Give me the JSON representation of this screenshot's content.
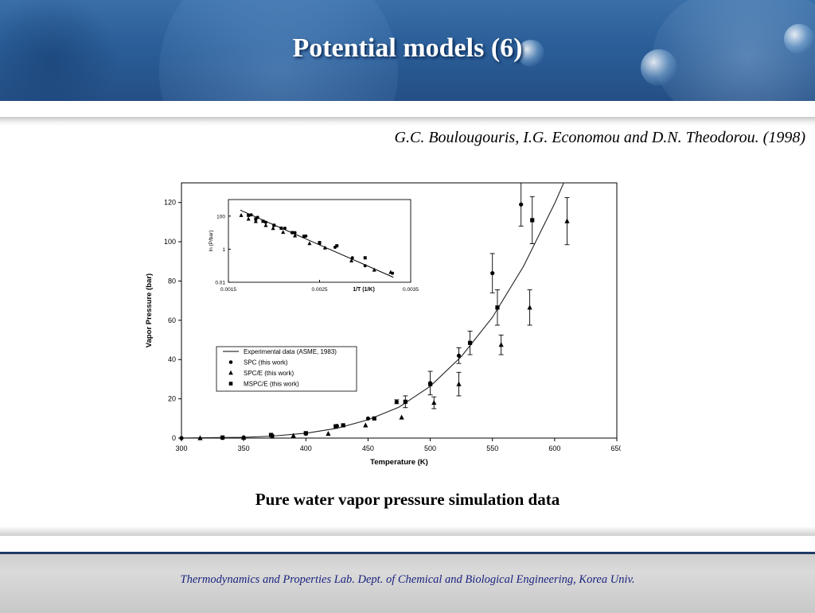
{
  "slide": {
    "title": "Potential models (6)",
    "citation": "G.C. Boulougouris, I.G. Economou and D.N. Theodorou. (1998)",
    "caption": "Pure water vapor pressure simulation data",
    "footer": "Thermodynamics  and  Properties  Lab.   Dept. of Chemical and Biological Engineering, Korea Univ."
  },
  "colors": {
    "header": "#2b5e98",
    "title": "#ffffff",
    "footer_text": "#1a237e",
    "footer_rule": "#1f3b66"
  },
  "chart_data": [
    {
      "type": "scatter",
      "xlabel": "Temperature (K)",
      "ylabel": "Vapor Pressure (bar)",
      "xlim": [
        300,
        650
      ],
      "ylim": [
        0,
        130
      ],
      "xticks": [
        "300",
        "350",
        "400",
        "450",
        "500",
        "550",
        "600",
        "650"
      ],
      "yticks": [
        "0",
        "20",
        "40",
        "60",
        "80",
        "100",
        "120"
      ],
      "legend_position": "lower-left",
      "legend": [
        "Experimental data (ASME, 1983)",
        "SPC (this work)",
        "SPC/E (this work)",
        "MSPC/E (this work)"
      ],
      "series": [
        {
          "name": "Experimental data (ASME, 1983)",
          "marker": "line",
          "x": [
            300,
            350,
            373,
            400,
            425,
            450,
            475,
            500,
            525,
            550,
            575,
            600,
            608
          ],
          "y": [
            0.035,
            0.42,
            1.01,
            2.46,
            5.0,
            9.3,
            15.8,
            26.4,
            41.5,
            61.5,
            87.5,
            119.5,
            131
          ]
        },
        {
          "name": "SPC (this work)",
          "marker": "circle",
          "x": [
            300,
            333,
            350,
            373,
            400,
            425,
            450,
            473,
            500,
            523,
            550,
            573
          ],
          "y": [
            0,
            0.1,
            0.3,
            1.3,
            2.2,
            6.2,
            10,
            18.5,
            28,
            42,
            84,
            119
          ],
          "err": [
            0,
            0,
            0,
            0,
            0,
            0,
            0,
            1,
            6,
            4,
            10,
            11
          ]
        },
        {
          "name": "SPC/E (this work)",
          "marker": "triangle",
          "x": [
            315,
            350,
            373,
            390,
            418,
            448,
            477,
            503,
            523,
            557,
            580,
            610
          ],
          "y": [
            0,
            0.2,
            0.8,
            1.2,
            2.2,
            6.5,
            10.5,
            18,
            27.5,
            47.5,
            66.5,
            110.5
          ],
          "err": [
            0,
            0,
            0,
            0,
            0,
            0,
            0,
            3,
            6,
            5,
            9,
            12
          ]
        },
        {
          "name": "MSPC/E (this work)",
          "marker": "square",
          "x": [
            333,
            372,
            400,
            424,
            430,
            455,
            480,
            500,
            532,
            554,
            582
          ],
          "y": [
            0.3,
            1.6,
            2.5,
            6,
            6.5,
            10,
            18.5,
            27.5,
            48.5,
            66.5,
            111
          ],
          "err": [
            0,
            0,
            0,
            0,
            0,
            0,
            3,
            0,
            6,
            9,
            12
          ]
        }
      ]
    },
    {
      "type": "scatter",
      "xlabel": "1/T (1/K)",
      "ylabel": "ln (P/bar)",
      "xlim": [
        0.0015,
        0.0035
      ],
      "ylim": [
        0.01,
        1000
      ],
      "yscale": "log",
      "xticks": [
        "0.0015",
        "0.0025",
        "0.0035"
      ],
      "yticks": [
        "0.01",
        "1",
        "100"
      ],
      "series": [
        {
          "name": "Experimental data (ASME, 1983)",
          "marker": "line",
          "x": [
            0.00163,
            0.00331
          ],
          "y": [
            230,
            0.02
          ]
        },
        {
          "name": "SPC (this work)",
          "marker": "circle",
          "x": [
            0.00175,
            0.00182,
            0.00191,
            0.002,
            0.00212,
            0.00223,
            0.00235,
            0.0025,
            0.00267,
            0.00286,
            0.003,
            0.0033
          ],
          "y": [
            119,
            84,
            42,
            28,
            18.5,
            10,
            6.2,
            2.2,
            1.3,
            0.3,
            0.1,
            0.035
          ]
        },
        {
          "name": "SPC/E (this work)",
          "marker": "triangle",
          "x": [
            0.00164,
            0.00172,
            0.0018,
            0.00191,
            0.00199,
            0.0021,
            0.00223,
            0.00239,
            0.00256,
            0.00285,
            0.0031,
            0.00328
          ],
          "y": [
            110.5,
            66.5,
            47.5,
            27.5,
            18,
            10.5,
            6.5,
            2.2,
            1.2,
            0.2,
            0.055,
            0.04
          ]
        },
        {
          "name": "MSPC/E (this work)",
          "marker": "square",
          "x": [
            0.00172,
            0.0018,
            0.00188,
            0.002,
            0.00208,
            0.0022,
            0.00233,
            0.0025,
            0.00269,
            0.003
          ],
          "y": [
            111,
            66.5,
            48.5,
            27.5,
            18.5,
            10,
            6,
            2.5,
            1.6,
            0.3
          ]
        }
      ]
    }
  ]
}
